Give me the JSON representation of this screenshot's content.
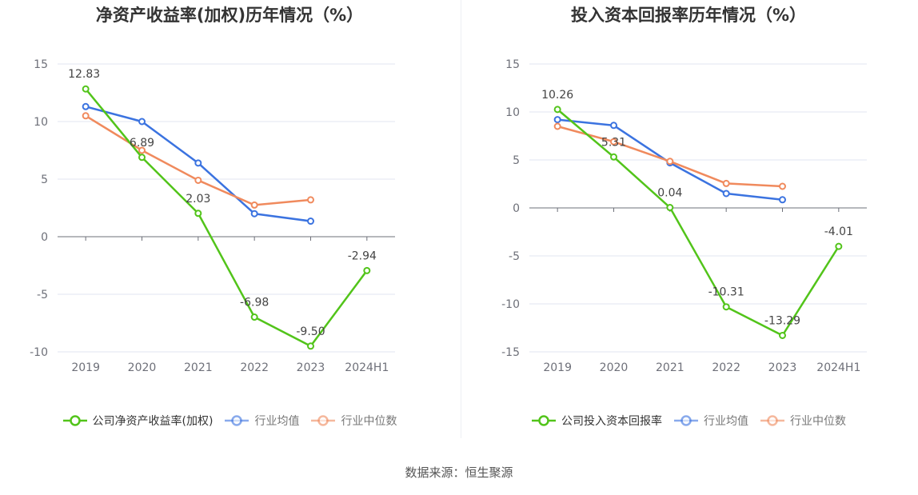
{
  "chart_data": [
    {
      "type": "line",
      "title": "净资产收益率(加权)历年情况（%）",
      "categories": [
        "2019",
        "2020",
        "2021",
        "2022",
        "2023",
        "2024H1"
      ],
      "ylim": [
        -10,
        15
      ],
      "yticks": [
        15,
        10,
        5,
        0,
        -5,
        -10
      ],
      "grid": true,
      "legend_position": "bottom",
      "series": [
        {
          "name": "公司净资产收益率(加权)",
          "color": "#52c41a",
          "values": [
            12.83,
            6.89,
            2.03,
            -6.98,
            -9.5,
            -2.94
          ],
          "labels": [
            "12.83",
            "6.89",
            "2.03",
            "-6.98",
            "-9.50",
            "-2.94"
          ]
        },
        {
          "name": "行业均值",
          "color": "#3b73e0",
          "values": [
            11.3,
            10.0,
            6.4,
            2.0,
            1.35,
            null
          ]
        },
        {
          "name": "行业中位数",
          "color": "#f08a5d",
          "values": [
            10.5,
            7.5,
            4.9,
            2.75,
            3.2,
            null
          ]
        }
      ]
    },
    {
      "type": "line",
      "title": "投入资本回报率历年情况（%）",
      "categories": [
        "2019",
        "2020",
        "2021",
        "2022",
        "2023",
        "2024H1"
      ],
      "ylim": [
        -15,
        15
      ],
      "yticks": [
        15,
        10,
        5,
        0,
        -5,
        -10,
        -15
      ],
      "grid": true,
      "legend_position": "bottom",
      "series": [
        {
          "name": "公司投入资本回报率",
          "color": "#52c41a",
          "values": [
            10.26,
            5.31,
            0.04,
            -10.31,
            -13.29,
            -4.01
          ],
          "labels": [
            "10.26",
            "5.31",
            "0.04",
            "-10.31",
            "-13.29",
            "-4.01"
          ]
        },
        {
          "name": "行业均值",
          "color": "#3b73e0",
          "values": [
            9.2,
            8.6,
            4.7,
            1.5,
            0.85,
            null
          ]
        },
        {
          "name": "行业中位数",
          "color": "#f08a5d",
          "values": [
            8.5,
            6.9,
            4.85,
            2.55,
            2.25,
            null
          ]
        }
      ]
    }
  ],
  "source": "数据来源：恒生聚源"
}
